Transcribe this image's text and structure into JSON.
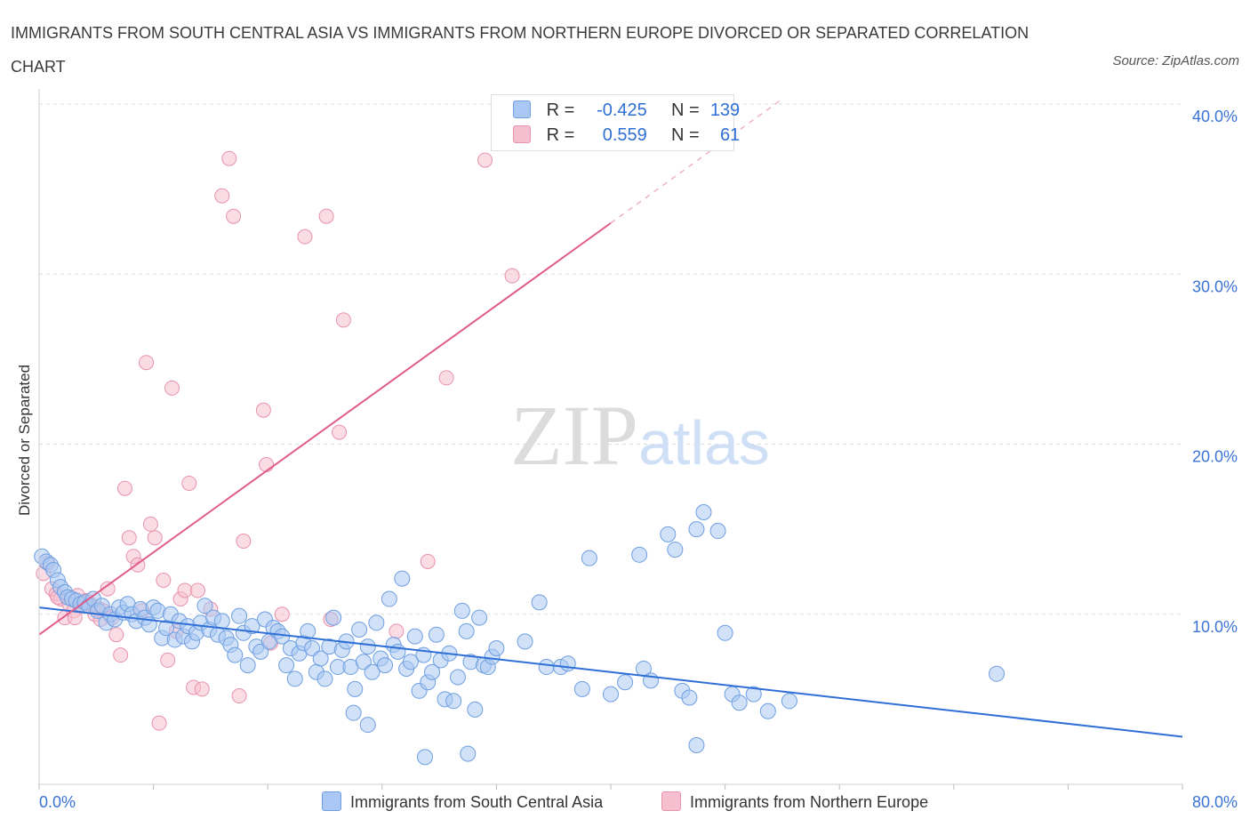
{
  "chart_data": {
    "type": "scatter",
    "title": "IMMIGRANTS FROM SOUTH CENTRAL ASIA VS IMMIGRANTS FROM NORTHERN EUROPE DIVORCED OR SEPARATED CORRELATION CHART",
    "source": "Source: ZipAtlas.com",
    "ylabel": "Divorced or Separated",
    "xlim": [
      0,
      80
    ],
    "ylim": [
      0,
      40
    ],
    "x_ticks": [
      "0.0%",
      "80.0%"
    ],
    "y_ticks": [
      {
        "v": 10,
        "label": "10.0%"
      },
      {
        "v": 20,
        "label": "20.0%"
      },
      {
        "v": 30,
        "label": "30.0%"
      },
      {
        "v": 40,
        "label": "40.0%"
      }
    ],
    "grid": true,
    "legend": {
      "r_label": "R =",
      "n_label": "N =",
      "rows": [
        {
          "r": "-0.425",
          "n": "139"
        },
        {
          "r": "0.559",
          "n": "61"
        }
      ]
    },
    "watermark": "ZIPatlas",
    "colors": {
      "blue_fill": "#aac8f3",
      "blue_stroke": "#6f9fe0",
      "blue_line": "#2f6fd6",
      "pink_fill": "#f6bfd0",
      "pink_stroke": "#e892ad",
      "pink_line": "#e05c8a",
      "axis_text": "#3b74d4"
    },
    "series": [
      {
        "name": "Immigrants from South Central Asia",
        "trend": {
          "x1": 0,
          "y1": 10.4,
          "x2": 80,
          "y2": 2.8
        },
        "points": [
          [
            0.2,
            13.4
          ],
          [
            0.5,
            13.1
          ],
          [
            0.8,
            12.9
          ],
          [
            1.0,
            12.6
          ],
          [
            1.3,
            12.0
          ],
          [
            1.5,
            11.6
          ],
          [
            1.8,
            11.3
          ],
          [
            2.0,
            11.0
          ],
          [
            2.3,
            10.9
          ],
          [
            2.6,
            10.8
          ],
          [
            2.9,
            10.6
          ],
          [
            3.2,
            10.7
          ],
          [
            3.5,
            10.5
          ],
          [
            3.8,
            10.9
          ],
          [
            4.1,
            10.2
          ],
          [
            4.4,
            10.5
          ],
          [
            4.7,
            9.5
          ],
          [
            5.0,
            10.0
          ],
          [
            5.3,
            9.7
          ],
          [
            5.6,
            10.4
          ],
          [
            5.9,
            10.1
          ],
          [
            6.2,
            10.6
          ],
          [
            6.5,
            10.0
          ],
          [
            6.8,
            9.6
          ],
          [
            7.1,
            10.3
          ],
          [
            7.4,
            9.8
          ],
          [
            7.7,
            9.4
          ],
          [
            8.0,
            10.4
          ],
          [
            8.3,
            10.2
          ],
          [
            8.6,
            8.6
          ],
          [
            8.9,
            9.2
          ],
          [
            9.2,
            10.0
          ],
          [
            9.5,
            8.5
          ],
          [
            9.8,
            9.6
          ],
          [
            10.1,
            8.7
          ],
          [
            10.4,
            9.3
          ],
          [
            10.7,
            8.4
          ],
          [
            11.0,
            8.9
          ],
          [
            11.3,
            9.5
          ],
          [
            11.6,
            10.5
          ],
          [
            11.9,
            9.1
          ],
          [
            12.2,
            9.8
          ],
          [
            12.5,
            8.8
          ],
          [
            12.8,
            9.6
          ],
          [
            13.1,
            8.6
          ],
          [
            13.4,
            8.2
          ],
          [
            13.7,
            7.6
          ],
          [
            14.0,
            9.9
          ],
          [
            14.3,
            8.9
          ],
          [
            14.6,
            7.0
          ],
          [
            14.9,
            9.3
          ],
          [
            15.2,
            8.1
          ],
          [
            15.5,
            7.8
          ],
          [
            15.8,
            9.7
          ],
          [
            16.1,
            8.4
          ],
          [
            16.4,
            9.2
          ],
          [
            16.7,
            9.0
          ],
          [
            17.0,
            8.7
          ],
          [
            17.3,
            7.0
          ],
          [
            17.6,
            8.0
          ],
          [
            17.9,
            6.2
          ],
          [
            18.2,
            7.7
          ],
          [
            18.5,
            8.3
          ],
          [
            18.8,
            9.0
          ],
          [
            19.1,
            8.0
          ],
          [
            19.4,
            6.6
          ],
          [
            19.7,
            7.4
          ],
          [
            20.0,
            6.2
          ],
          [
            20.3,
            8.1
          ],
          [
            20.6,
            9.8
          ],
          [
            20.9,
            6.9
          ],
          [
            21.2,
            7.9
          ],
          [
            21.5,
            8.4
          ],
          [
            21.8,
            6.9
          ],
          [
            22.1,
            5.6
          ],
          [
            22.4,
            9.1
          ],
          [
            22.7,
            7.2
          ],
          [
            23.0,
            8.1
          ],
          [
            23.3,
            6.6
          ],
          [
            23.6,
            9.5
          ],
          [
            23.9,
            7.4
          ],
          [
            24.2,
            7.0
          ],
          [
            24.5,
            10.9
          ],
          [
            24.8,
            8.2
          ],
          [
            25.1,
            7.8
          ],
          [
            25.4,
            12.1
          ],
          [
            25.7,
            6.8
          ],
          [
            26.0,
            7.2
          ],
          [
            26.3,
            8.7
          ],
          [
            26.6,
            5.5
          ],
          [
            26.9,
            7.6
          ],
          [
            27.2,
            6.0
          ],
          [
            27.5,
            6.6
          ],
          [
            27.8,
            8.8
          ],
          [
            28.1,
            7.3
          ],
          [
            28.4,
            5.0
          ],
          [
            28.7,
            7.7
          ],
          [
            29.0,
            4.9
          ],
          [
            29.3,
            6.3
          ],
          [
            29.6,
            10.2
          ],
          [
            29.9,
            9.0
          ],
          [
            30.2,
            7.2
          ],
          [
            30.5,
            4.4
          ],
          [
            30.8,
            9.8
          ],
          [
            31.1,
            7.0
          ],
          [
            31.4,
            6.9
          ],
          [
            31.7,
            7.5
          ],
          [
            32.0,
            8.0
          ],
          [
            27.0,
            1.6
          ],
          [
            30.0,
            1.8
          ],
          [
            22.0,
            4.2
          ],
          [
            23.0,
            3.5
          ],
          [
            34.0,
            8.4
          ],
          [
            35.0,
            10.7
          ],
          [
            35.5,
            6.9
          ],
          [
            36.5,
            6.9
          ],
          [
            37.0,
            7.1
          ],
          [
            38.0,
            5.6
          ],
          [
            38.5,
            13.3
          ],
          [
            40.0,
            5.3
          ],
          [
            41.0,
            6.0
          ],
          [
            42.0,
            13.5
          ],
          [
            42.3,
            6.8
          ],
          [
            42.8,
            6.1
          ],
          [
            44.0,
            14.7
          ],
          [
            44.5,
            13.8
          ],
          [
            45.0,
            5.5
          ],
          [
            45.5,
            5.1
          ],
          [
            46.0,
            15.0
          ],
          [
            46.5,
            16.0
          ],
          [
            47.5,
            14.9
          ],
          [
            48.0,
            8.9
          ],
          [
            48.5,
            5.3
          ],
          [
            49.0,
            4.8
          ],
          [
            50.0,
            5.3
          ],
          [
            51.0,
            4.3
          ],
          [
            52.5,
            4.9
          ],
          [
            67.0,
            6.5
          ],
          [
            46.0,
            2.3
          ]
        ]
      },
      {
        "name": "Immigrants from Northern Europe",
        "trend": {
          "x1": 0,
          "y1": 8.8,
          "x2": 40,
          "y2": 33.0
        },
        "trend_dashed": {
          "x1": 40,
          "y1": 33.0,
          "x2": 52,
          "y2": 40.3
        },
        "points": [
          [
            0.3,
            12.4
          ],
          [
            0.6,
            13.0
          ],
          [
            0.9,
            11.5
          ],
          [
            1.2,
            11.2
          ],
          [
            1.5,
            10.9
          ],
          [
            1.8,
            9.8
          ],
          [
            2.1,
            10.6
          ],
          [
            2.4,
            10.2
          ],
          [
            2.7,
            11.1
          ],
          [
            3.0,
            10.5
          ],
          [
            3.3,
            10.8
          ],
          [
            3.6,
            10.6
          ],
          [
            3.9,
            10.0
          ],
          [
            4.2,
            10.3
          ],
          [
            4.5,
            10.2
          ],
          [
            4.8,
            11.5
          ],
          [
            5.1,
            9.8
          ],
          [
            5.4,
            8.8
          ],
          [
            5.7,
            7.6
          ],
          [
            6.0,
            17.4
          ],
          [
            6.3,
            14.5
          ],
          [
            6.6,
            13.4
          ],
          [
            6.9,
            12.9
          ],
          [
            7.2,
            10.2
          ],
          [
            7.5,
            24.8
          ],
          [
            7.8,
            15.3
          ],
          [
            8.1,
            14.5
          ],
          [
            8.4,
            3.6
          ],
          [
            8.7,
            12.0
          ],
          [
            9.0,
            7.3
          ],
          [
            9.3,
            23.3
          ],
          [
            9.6,
            9.0
          ],
          [
            9.9,
            10.9
          ],
          [
            10.2,
            11.4
          ],
          [
            10.5,
            17.7
          ],
          [
            10.8,
            5.7
          ],
          [
            11.1,
            11.4
          ],
          [
            11.4,
            5.6
          ],
          [
            12.0,
            10.3
          ],
          [
            12.8,
            34.6
          ],
          [
            13.3,
            36.8
          ],
          [
            13.6,
            33.4
          ],
          [
            14.0,
            5.2
          ],
          [
            14.3,
            14.3
          ],
          [
            15.7,
            22.0
          ],
          [
            15.9,
            18.8
          ],
          [
            16.2,
            8.3
          ],
          [
            17.0,
            10.0
          ],
          [
            18.6,
            32.2
          ],
          [
            20.1,
            33.4
          ],
          [
            20.4,
            9.7
          ],
          [
            21.0,
            20.7
          ],
          [
            21.3,
            27.3
          ],
          [
            27.2,
            13.1
          ],
          [
            28.5,
            23.9
          ],
          [
            31.2,
            36.7
          ],
          [
            33.1,
            29.9
          ],
          [
            25.0,
            9.0
          ],
          [
            4.3,
            9.7
          ],
          [
            2.5,
            9.8
          ],
          [
            1.3,
            11.0
          ]
        ]
      }
    ]
  },
  "bottom_legend": [
    "Immigrants from South Central Asia",
    "Immigrants from Northern Europe"
  ]
}
